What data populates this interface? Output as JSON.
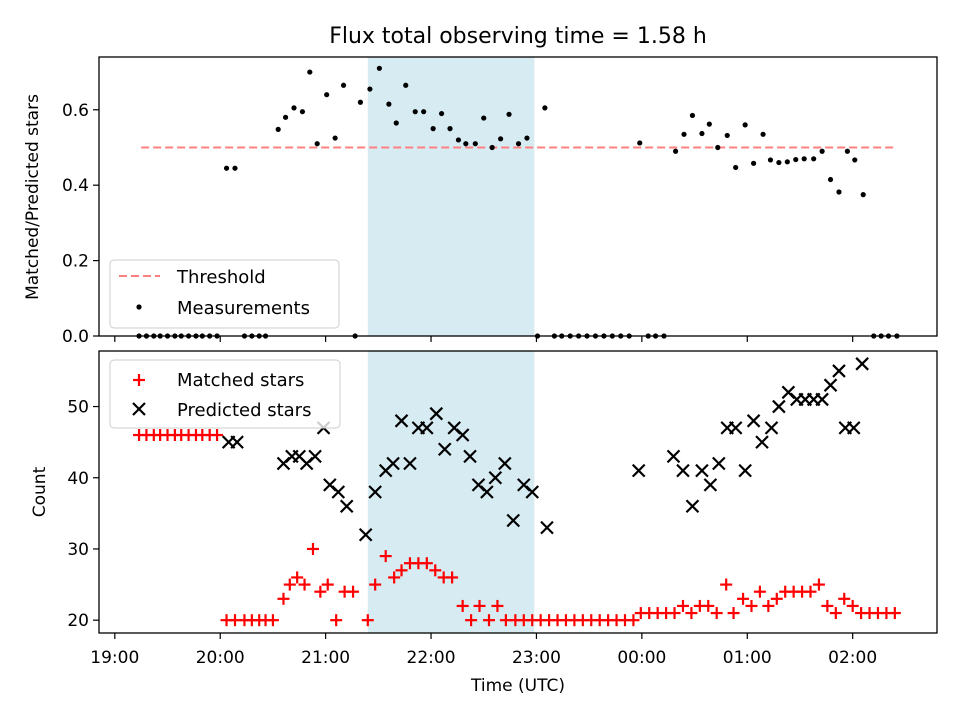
{
  "figure": {
    "title": "Flux total observing time = 1.58 h"
  },
  "chart_data": [
    {
      "type": "scatter",
      "panel": "top",
      "ylabel": "Matched/Predicted stars",
      "xlim": [
        18.85,
        26.8
      ],
      "ylim": [
        0,
        0.74
      ],
      "yticks": [
        0.0,
        0.2,
        0.4,
        0.6
      ],
      "ytick_labels": [
        "0.0",
        "0.2",
        "0.4",
        "0.6"
      ],
      "shaded_interval": [
        21.4,
        22.98
      ],
      "threshold": {
        "value": 0.5,
        "x_range": [
          19.25,
          26.4
        ],
        "color": "#ff8080"
      },
      "legend": {
        "position": "lower-left",
        "threshold_label": "Threshold",
        "measurements_label": "Measurements"
      },
      "series": [
        {
          "name": "Measurements",
          "color": "#000000",
          "points": [
            [
              19.23,
              0
            ],
            [
              19.3,
              0
            ],
            [
              19.37,
              0
            ],
            [
              19.43,
              0
            ],
            [
              19.5,
              0
            ],
            [
              19.57,
              0
            ],
            [
              19.63,
              0
            ],
            [
              19.7,
              0
            ],
            [
              19.77,
              0
            ],
            [
              19.83,
              0
            ],
            [
              19.9,
              0
            ],
            [
              19.97,
              0
            ],
            [
              20.06,
              0.445
            ],
            [
              20.14,
              0.445
            ],
            [
              20.23,
              0
            ],
            [
              20.3,
              0
            ],
            [
              20.37,
              0
            ],
            [
              20.43,
              0
            ],
            [
              20.55,
              0.548
            ],
            [
              20.62,
              0.58
            ],
            [
              20.7,
              0.605
            ],
            [
              20.78,
              0.595
            ],
            [
              20.85,
              0.7
            ],
            [
              20.92,
              0.51
            ],
            [
              21.01,
              0.64
            ],
            [
              21.09,
              0.525
            ],
            [
              21.17,
              0.665
            ],
            [
              21.28,
              0
            ],
            [
              21.33,
              0.62
            ],
            [
              21.42,
              0.655
            ],
            [
              21.51,
              0.71
            ],
            [
              21.6,
              0.615
            ],
            [
              21.67,
              0.565
            ],
            [
              21.76,
              0.665
            ],
            [
              21.85,
              0.595
            ],
            [
              21.93,
              0.595
            ],
            [
              22.02,
              0.55
            ],
            [
              22.1,
              0.59
            ],
            [
              22.18,
              0.55
            ],
            [
              22.26,
              0.52
            ],
            [
              22.33,
              0.51
            ],
            [
              22.42,
              0.51
            ],
            [
              22.5,
              0.578
            ],
            [
              22.58,
              0.5
            ],
            [
              22.66,
              0.523
            ],
            [
              22.74,
              0.588
            ],
            [
              22.83,
              0.51
            ],
            [
              22.91,
              0.525
            ],
            [
              23.01,
              0
            ],
            [
              23.08,
              0.605
            ],
            [
              23.17,
              0
            ],
            [
              23.24,
              0
            ],
            [
              23.32,
              0
            ],
            [
              23.4,
              0
            ],
            [
              23.48,
              0
            ],
            [
              23.56,
              0
            ],
            [
              23.64,
              0
            ],
            [
              23.72,
              0
            ],
            [
              23.8,
              0
            ],
            [
              23.88,
              0
            ],
            [
              23.98,
              0.512
            ],
            [
              24.06,
              0
            ],
            [
              24.13,
              0
            ],
            [
              24.21,
              0
            ],
            [
              24.32,
              0.49
            ],
            [
              24.4,
              0.535
            ],
            [
              24.48,
              0.585
            ],
            [
              24.57,
              0.537
            ],
            [
              24.64,
              0.562
            ],
            [
              24.72,
              0.5
            ],
            [
              24.81,
              0.532
            ],
            [
              24.89,
              0.447
            ],
            [
              24.98,
              0.56
            ],
            [
              25.06,
              0.458
            ],
            [
              25.15,
              0.535
            ],
            [
              25.22,
              0.467
            ],
            [
              25.3,
              0.46
            ],
            [
              25.38,
              0.462
            ],
            [
              25.46,
              0.468
            ],
            [
              25.54,
              0.47
            ],
            [
              25.63,
              0.47
            ],
            [
              25.71,
              0.49
            ],
            [
              25.79,
              0.415
            ],
            [
              25.87,
              0.382
            ],
            [
              25.95,
              0.49
            ],
            [
              26.02,
              0.467
            ],
            [
              26.1,
              0.375
            ],
            [
              26.2,
              0
            ],
            [
              26.27,
              0
            ],
            [
              26.34,
              0
            ],
            [
              26.42,
              0
            ]
          ]
        }
      ]
    },
    {
      "type": "scatter",
      "panel": "bottom",
      "xlabel": "Time (UTC)",
      "ylabel": "Count",
      "xlim": [
        18.85,
        26.8
      ],
      "ylim": [
        18.2,
        57.8
      ],
      "yticks": [
        20,
        30,
        40,
        50
      ],
      "ytick_labels": [
        "20",
        "30",
        "40",
        "50"
      ],
      "xticks": [
        19,
        20,
        21,
        22,
        23,
        24,
        25,
        26
      ],
      "xtick_labels": [
        "19:00",
        "20:00",
        "21:00",
        "22:00",
        "23:00",
        "00:00",
        "01:00",
        "02:00"
      ],
      "shaded_interval": [
        21.4,
        22.98
      ],
      "legend": {
        "position": "upper-left"
      },
      "series": [
        {
          "name": "Matched stars",
          "marker": "plus",
          "color": "#ff0000",
          "points": [
            [
              19.23,
              46
            ],
            [
              19.3,
              46
            ],
            [
              19.37,
              46
            ],
            [
              19.43,
              46
            ],
            [
              19.5,
              46
            ],
            [
              19.57,
              46
            ],
            [
              19.63,
              46
            ],
            [
              19.7,
              46
            ],
            [
              19.77,
              46
            ],
            [
              19.83,
              46
            ],
            [
              19.9,
              46
            ],
            [
              19.97,
              46
            ],
            [
              20.06,
              20
            ],
            [
              20.14,
              20
            ],
            [
              20.23,
              20
            ],
            [
              20.3,
              20
            ],
            [
              20.37,
              20
            ],
            [
              20.43,
              20
            ],
            [
              20.5,
              20
            ],
            [
              20.6,
              23
            ],
            [
              20.66,
              25
            ],
            [
              20.73,
              26
            ],
            [
              20.8,
              25
            ],
            [
              20.88,
              30
            ],
            [
              20.95,
              24
            ],
            [
              21.02,
              25
            ],
            [
              21.1,
              20
            ],
            [
              21.18,
              24
            ],
            [
              21.26,
              24
            ],
            [
              21.4,
              20
            ],
            [
              21.47,
              25
            ],
            [
              21.57,
              29
            ],
            [
              21.65,
              26
            ],
            [
              21.72,
              27
            ],
            [
              21.8,
              28
            ],
            [
              21.88,
              28
            ],
            [
              21.96,
              28
            ],
            [
              22.04,
              27
            ],
            [
              22.12,
              26
            ],
            [
              22.2,
              26
            ],
            [
              22.3,
              22
            ],
            [
              22.38,
              20
            ],
            [
              22.46,
              22
            ],
            [
              22.55,
              20
            ],
            [
              22.63,
              22
            ],
            [
              22.71,
              20
            ],
            [
              22.8,
              20
            ],
            [
              22.88,
              20
            ],
            [
              22.96,
              20
            ],
            [
              23.04,
              20
            ],
            [
              23.12,
              20
            ],
            [
              23.2,
              20
            ],
            [
              23.28,
              20
            ],
            [
              23.36,
              20
            ],
            [
              23.44,
              20
            ],
            [
              23.52,
              20
            ],
            [
              23.6,
              20
            ],
            [
              23.68,
              20
            ],
            [
              23.76,
              20
            ],
            [
              23.84,
              20
            ],
            [
              23.92,
              20
            ],
            [
              23.99,
              21
            ],
            [
              24.07,
              21
            ],
            [
              24.15,
              21
            ],
            [
              24.23,
              21
            ],
            [
              24.31,
              21
            ],
            [
              24.39,
              22
            ],
            [
              24.47,
              21
            ],
            [
              24.55,
              22
            ],
            [
              24.63,
              22
            ],
            [
              24.71,
              21
            ],
            [
              24.8,
              25
            ],
            [
              24.87,
              21
            ],
            [
              24.96,
              23
            ],
            [
              25.04,
              22
            ],
            [
              25.12,
              24
            ],
            [
              25.2,
              22
            ],
            [
              25.28,
              23
            ],
            [
              25.36,
              24
            ],
            [
              25.44,
              24
            ],
            [
              25.52,
              24
            ],
            [
              25.6,
              24
            ],
            [
              25.68,
              25
            ],
            [
              25.76,
              22
            ],
            [
              25.84,
              21
            ],
            [
              25.92,
              23
            ],
            [
              26.0,
              22
            ],
            [
              26.08,
              21
            ],
            [
              26.16,
              21
            ],
            [
              26.24,
              21
            ],
            [
              26.32,
              21
            ],
            [
              26.4,
              21
            ]
          ]
        },
        {
          "name": "Predicted stars",
          "marker": "x",
          "color": "#000000",
          "points": [
            [
              20.08,
              45
            ],
            [
              20.16,
              45
            ],
            [
              20.6,
              42
            ],
            [
              20.68,
              43
            ],
            [
              20.75,
              43
            ],
            [
              20.82,
              42
            ],
            [
              20.9,
              43
            ],
            [
              20.98,
              47
            ],
            [
              21.04,
              39
            ],
            [
              21.12,
              38
            ],
            [
              21.2,
              36
            ],
            [
              21.38,
              32
            ],
            [
              21.47,
              38
            ],
            [
              21.57,
              41
            ],
            [
              21.64,
              42
            ],
            [
              21.72,
              48
            ],
            [
              21.8,
              42
            ],
            [
              21.88,
              47
            ],
            [
              21.96,
              47
            ],
            [
              22.05,
              49
            ],
            [
              22.13,
              44
            ],
            [
              22.22,
              47
            ],
            [
              22.3,
              46
            ],
            [
              22.37,
              43
            ],
            [
              22.45,
              39
            ],
            [
              22.53,
              38
            ],
            [
              22.61,
              40
            ],
            [
              22.7,
              42
            ],
            [
              22.78,
              34
            ],
            [
              22.88,
              39
            ],
            [
              22.96,
              38
            ],
            [
              23.1,
              33
            ],
            [
              23.97,
              41
            ],
            [
              24.3,
              43
            ],
            [
              24.39,
              41
            ],
            [
              24.48,
              36
            ],
            [
              24.57,
              41
            ],
            [
              24.65,
              39
            ],
            [
              24.73,
              42
            ],
            [
              24.81,
              47
            ],
            [
              24.89,
              47
            ],
            [
              24.98,
              41
            ],
            [
              25.06,
              48
            ],
            [
              25.14,
              45
            ],
            [
              25.23,
              47
            ],
            [
              25.3,
              50
            ],
            [
              25.39,
              52
            ],
            [
              25.47,
              51
            ],
            [
              25.55,
              51
            ],
            [
              25.63,
              51
            ],
            [
              25.71,
              51
            ],
            [
              25.79,
              53
            ],
            [
              25.87,
              55
            ],
            [
              25.93,
              47
            ],
            [
              26.01,
              47
            ],
            [
              26.09,
              56
            ]
          ]
        }
      ]
    }
  ]
}
